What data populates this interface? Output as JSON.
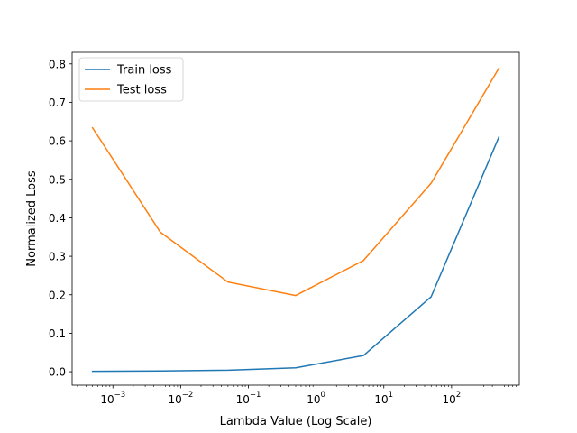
{
  "chart_data": {
    "type": "line",
    "title": "",
    "xlabel": "Lambda Value (Log Scale)",
    "ylabel": "Normalized Loss",
    "xscale": "log",
    "xlim": [
      0.00025,
      1000
    ],
    "ylim": [
      -0.035,
      0.83
    ],
    "x": [
      0.0005,
      0.005,
      0.05,
      0.5,
      5,
      50,
      500
    ],
    "x_ticks": [
      {
        "value": 0.001,
        "base": "10",
        "exp": "−3"
      },
      {
        "value": 0.01,
        "base": "10",
        "exp": "−2"
      },
      {
        "value": 0.1,
        "base": "10",
        "exp": "−1"
      },
      {
        "value": 1,
        "base": "10",
        "exp": "0"
      },
      {
        "value": 10,
        "base": "10",
        "exp": "1"
      },
      {
        "value": 100,
        "base": "10",
        "exp": "2"
      }
    ],
    "y_ticks": [
      {
        "value": 0.0,
        "label": "0.0"
      },
      {
        "value": 0.1,
        "label": "0.1"
      },
      {
        "value": 0.2,
        "label": "0.2"
      },
      {
        "value": 0.3,
        "label": "0.3"
      },
      {
        "value": 0.4,
        "label": "0.4"
      },
      {
        "value": 0.5,
        "label": "0.5"
      },
      {
        "value": 0.6,
        "label": "0.6"
      },
      {
        "value": 0.7,
        "label": "0.7"
      },
      {
        "value": 0.8,
        "label": "0.8"
      }
    ],
    "series": [
      {
        "name": "Train loss",
        "color": "#1f77b4",
        "values": [
          0.001,
          0.002,
          0.004,
          0.01,
          0.042,
          0.195,
          0.61
        ]
      },
      {
        "name": "Test loss",
        "color": "#ff7f0e",
        "values": [
          0.634,
          0.363,
          0.233,
          0.198,
          0.289,
          0.49,
          0.789
        ]
      }
    ],
    "legend": "top-left",
    "grid": false
  }
}
